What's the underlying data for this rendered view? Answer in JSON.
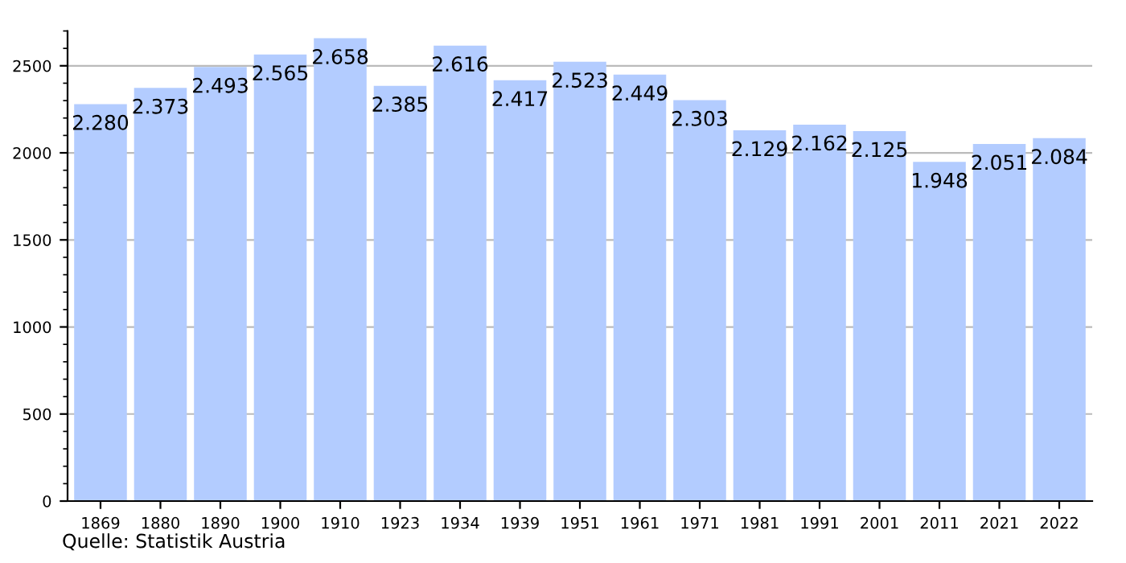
{
  "chart_data": {
    "type": "bar",
    "categories": [
      "1869",
      "1880",
      "1890",
      "1900",
      "1910",
      "1923",
      "1934",
      "1939",
      "1951",
      "1961",
      "1971",
      "1981",
      "1991",
      "2001",
      "2011",
      "2021",
      "2022"
    ],
    "values": [
      2280,
      2373,
      2493,
      2565,
      2658,
      2385,
      2616,
      2417,
      2523,
      2449,
      2303,
      2129,
      2162,
      2125,
      1948,
      2051,
      2084
    ],
    "value_labels": [
      "2.280",
      "2.373",
      "2.493",
      "2.565",
      "2.658",
      "2.385",
      "2.616",
      "2.417",
      "2.523",
      "2.449",
      "2.303",
      "2.129",
      "2.162",
      "2.125",
      "1.948",
      "2.051",
      "2.084"
    ],
    "color": "#b3ccff",
    "ylim": [
      0,
      2700
    ],
    "yticks": [
      0,
      500,
      1000,
      1500,
      2000,
      2500
    ],
    "grid": "y",
    "annotations": [
      "Quelle: Statistik Austria"
    ]
  }
}
